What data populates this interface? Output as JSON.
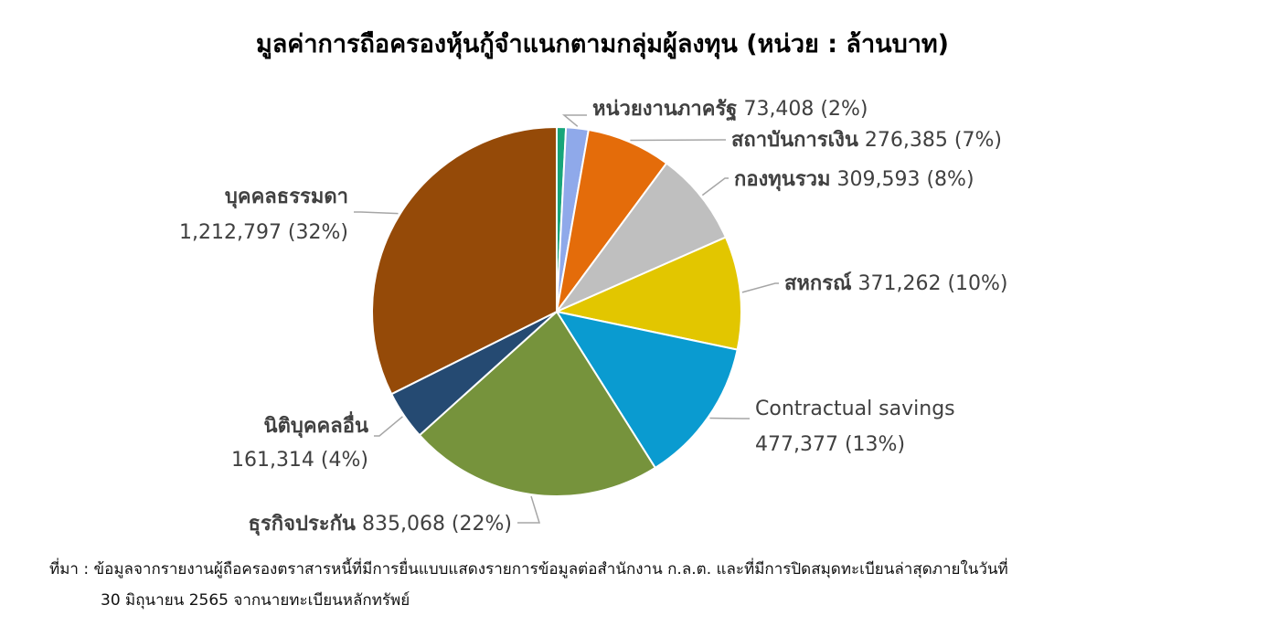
{
  "title": "มูลค่าการถือครองหุ้นกู้จำแนกตามกลุ่มผู้ลงทุน (หน่วย : ล้านบาท)",
  "source": {
    "prefix": "ที่มา :",
    "line1": "ข้อมูลจากรายงานผู้ถือครองตราสารหนี้ที่มีการยื่นแบบแสดงรายการข้อมูลต่อสำนักงาน ก.ล.ต. และที่มีการปิดสมุดทะเบียนล่าสุดภายในวันที่",
    "line2": "30 มิถุนายน 2565 จากนายทะเบียนหลักทรัพย์"
  },
  "chart_data": {
    "type": "pie",
    "title": "มูลค่าการถือครองหุ้นกู้จำแนกตามกลุ่มผู้ลงทุน (หน่วย : ล้านบาท)",
    "slices": [
      {
        "name": "",
        "value": 30000,
        "color": "#17a57a"
      },
      {
        "name": "หน่วยงานภาครัฐ",
        "value": 73408,
        "value_label": "73,408",
        "pct_label": "(2%)",
        "color": "#8fa9ea"
      },
      {
        "name": "สถาบันการเงิน",
        "value": 276385,
        "value_label": "276,385",
        "pct_label": "(7%)",
        "color": "#e46c0a"
      },
      {
        "name": "กองทุนรวม",
        "value": 309593,
        "value_label": "309,593",
        "pct_label": "(8%)",
        "color": "#bfbfbf"
      },
      {
        "name": "สหกรณ์",
        "value": 371262,
        "value_label": "371,262",
        "pct_label": "(10%)",
        "color": "#e2c600"
      },
      {
        "name": "Contractual savings",
        "value": 477377,
        "value_label": "477,377",
        "pct_label": "(13%)",
        "color": "#0a9bd0"
      },
      {
        "name": "ธุรกิจประกัน",
        "value": 835068,
        "value_label": "835,068",
        "pct_label": "(22%)",
        "color": "#76933c"
      },
      {
        "name": "นิติบุคคลอื่น",
        "value": 161314,
        "value_label": "161,314",
        "pct_label": "(4%)",
        "color": "#254a72"
      },
      {
        "name": "บุคคลธรรมดา",
        "value": 1212797,
        "value_label": "1,212,797",
        "pct_label": "(32%)",
        "color": "#954a08"
      }
    ]
  }
}
